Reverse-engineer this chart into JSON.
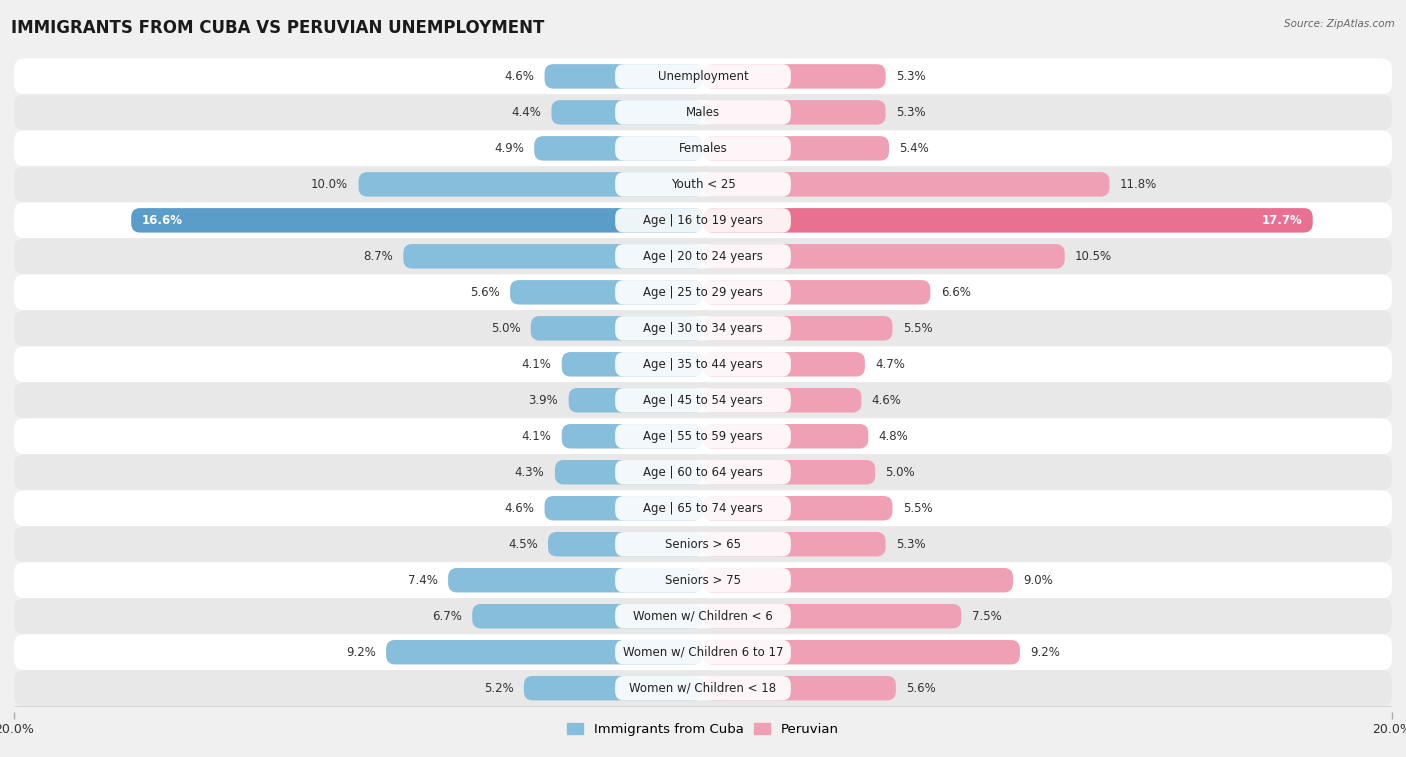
{
  "title": "IMMIGRANTS FROM CUBA VS PERUVIAN UNEMPLOYMENT",
  "source": "Source: ZipAtlas.com",
  "categories": [
    "Unemployment",
    "Males",
    "Females",
    "Youth < 25",
    "Age | 16 to 19 years",
    "Age | 20 to 24 years",
    "Age | 25 to 29 years",
    "Age | 30 to 34 years",
    "Age | 35 to 44 years",
    "Age | 45 to 54 years",
    "Age | 55 to 59 years",
    "Age | 60 to 64 years",
    "Age | 65 to 74 years",
    "Seniors > 65",
    "Seniors > 75",
    "Women w/ Children < 6",
    "Women w/ Children 6 to 17",
    "Women w/ Children < 18"
  ],
  "cuba_values": [
    4.6,
    4.4,
    4.9,
    10.0,
    16.6,
    8.7,
    5.6,
    5.0,
    4.1,
    3.9,
    4.1,
    4.3,
    4.6,
    4.5,
    7.4,
    6.7,
    9.2,
    5.2
  ],
  "peru_values": [
    5.3,
    5.3,
    5.4,
    11.8,
    17.7,
    10.5,
    6.6,
    5.5,
    4.7,
    4.6,
    4.8,
    5.0,
    5.5,
    5.3,
    9.0,
    7.5,
    9.2,
    5.6
  ],
  "cuba_color": "#87bedc",
  "peru_color": "#f0a0b4",
  "cuba_highlight_color": "#5a9dc8",
  "peru_highlight_color": "#e87090",
  "highlight_row": 4,
  "xlim": 20,
  "bg_color": "#f0f0f0",
  "row_color_even": "#ffffff",
  "row_color_odd": "#e8e8e8",
  "title_fontsize": 12,
  "label_fontsize": 8.5,
  "value_fontsize": 8.5,
  "legend_fontsize": 9.5
}
